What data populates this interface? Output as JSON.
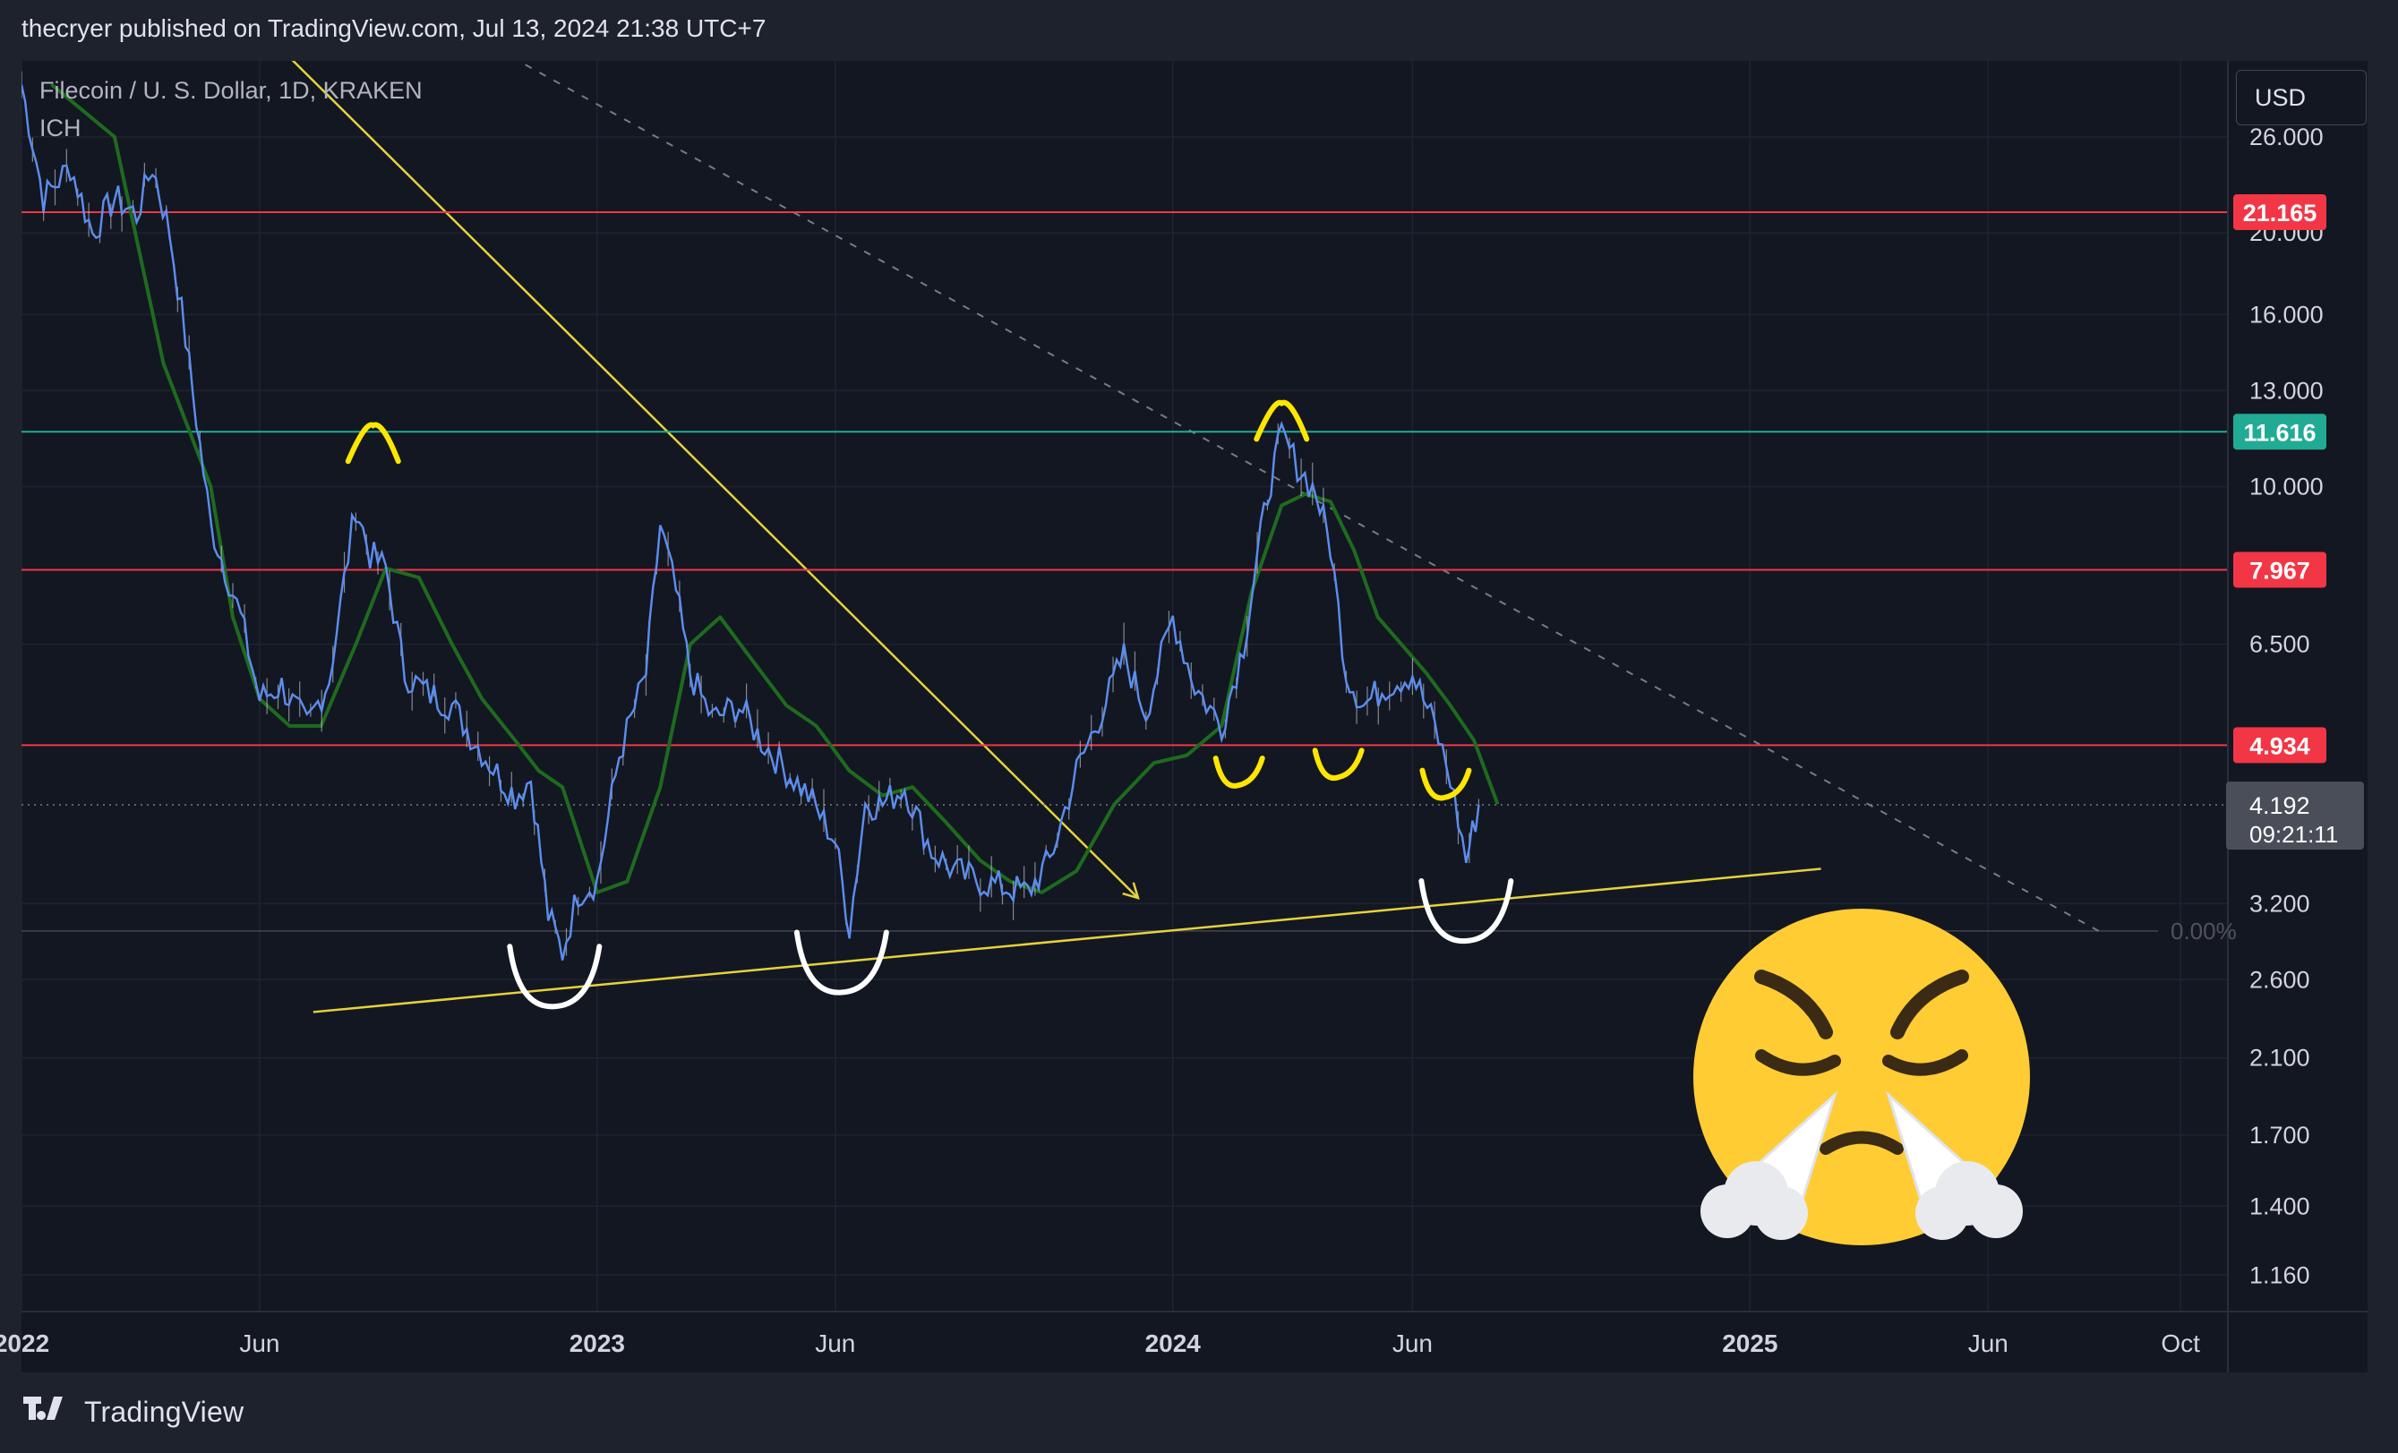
{
  "header": {
    "text": "thecryer published on TradingView.com, Jul 13, 2024 21:38 UTC+7"
  },
  "legend": {
    "symbol": "Filecoin / U. S. Dollar, 1D, KRAKEN",
    "indicator": "ICH"
  },
  "currency": "USD",
  "footer": {
    "brand": "TradingView"
  },
  "colors": {
    "background": "#131722",
    "price": "#5b8def",
    "cloud_line": "#1e6b1e",
    "conversion_line": "#c8a85a",
    "resistance": "#f23645",
    "pivot": "#22ab94",
    "trend": "#e6d23c",
    "annotation_yellow": "#ffe600",
    "annotation_white": "#ffffff"
  },
  "chart_data": {
    "type": "line",
    "symbol": "Filecoin / U. S. Dollar",
    "interval": "1D",
    "exchange": "KRAKEN",
    "scale": "log",
    "ylim": [
      1.05,
      32
    ],
    "y_ticks": [
      "26.000",
      "20.000",
      "16.000",
      "13.000",
      "10.000",
      "6.500",
      "3.200",
      "2.600",
      "2.100",
      "1.700",
      "1.400",
      "1.160"
    ],
    "x_ticks": [
      "2022",
      "Jun",
      "2023",
      "Jun",
      "2024",
      "Jun",
      "2025",
      "Jun",
      "Oct"
    ],
    "x_range": [
      "2022-01-01",
      "2025-10-31"
    ],
    "grid": true,
    "price_series": {
      "name": "",
      "x": [
        "2022-01-01",
        "2022-01-15",
        "2022-02-01",
        "2022-02-15",
        "2022-03-01",
        "2022-03-15",
        "2022-03-25",
        "2022-04-05",
        "2022-04-15",
        "2022-05-01",
        "2022-05-10",
        "2022-05-20",
        "2022-06-01",
        "2022-06-15",
        "2022-07-01",
        "2022-07-15",
        "2022-08-01",
        "2022-08-10",
        "2022-08-20",
        "2022-09-01",
        "2022-09-15",
        "2022-10-01",
        "2022-10-15",
        "2022-11-01",
        "2022-11-10",
        "2022-11-20",
        "2022-12-01",
        "2022-12-10",
        "2022-12-20",
        "2023-01-01",
        "2023-01-15",
        "2023-02-01",
        "2023-02-10",
        "2023-02-20",
        "2023-03-01",
        "2023-03-15",
        "2023-04-01",
        "2023-04-15",
        "2023-05-01",
        "2023-05-15",
        "2023-06-01",
        "2023-06-10",
        "2023-06-20",
        "2023-07-01",
        "2023-07-15",
        "2023-08-01",
        "2023-08-15",
        "2023-09-01",
        "2023-09-15",
        "2023-10-01",
        "2023-10-15",
        "2023-11-01",
        "2023-11-15",
        "2023-12-01",
        "2023-12-15",
        "2024-01-01",
        "2024-01-15",
        "2024-02-01",
        "2024-02-15",
        "2024-03-01",
        "2024-03-10",
        "2024-03-20",
        "2024-04-01",
        "2024-04-10",
        "2024-04-20",
        "2024-05-01",
        "2024-05-15",
        "2024-06-01",
        "2024-06-15",
        "2024-06-25",
        "2024-07-05",
        "2024-07-13"
      ],
      "y": [
        30,
        22,
        24,
        20,
        22,
        21,
        24,
        20,
        15,
        9,
        8,
        7,
        5.6,
        5.8,
        5.2,
        5.9,
        9.5,
        8.3,
        8,
        6,
        5.7,
        5.5,
        5,
        4.5,
        4.3,
        4.5,
        3.1,
        2.8,
        3.3,
        3.4,
        4.8,
        6,
        9,
        7.5,
        6,
        5.3,
        5.5,
        5,
        4.6,
        4.3,
        3.8,
        3.0,
        4.2,
        4.2,
        4.4,
        3.7,
        3.5,
        3.4,
        3.35,
        3.3,
        3.6,
        4.6,
        5.3,
        6.3,
        5.4,
        7,
        5.8,
        5.2,
        6.5,
        9.8,
        11.5,
        10.6,
        9.8,
        8.5,
        6,
        5.5,
        5.8,
        6,
        5.2,
        4.5,
        3.6,
        4.19
      ]
    },
    "ichimoku_line": {
      "name": "",
      "x": [
        "2022-01-20",
        "2022-03-01",
        "2022-04-01",
        "2022-05-01",
        "2022-05-15",
        "2022-06-01",
        "2022-06-20",
        "2022-07-10",
        "2022-08-01",
        "2022-08-20",
        "2022-09-10",
        "2022-10-01",
        "2022-10-20",
        "2022-11-10",
        "2022-11-25",
        "2022-12-10",
        "2023-01-01",
        "2023-01-20",
        "2023-02-10",
        "2023-03-01",
        "2023-03-20",
        "2023-04-10",
        "2023-05-01",
        "2023-05-20",
        "2023-06-10",
        "2023-07-01",
        "2023-07-20",
        "2023-08-10",
        "2023-09-01",
        "2023-09-20",
        "2023-10-10",
        "2023-11-01",
        "2023-11-25",
        "2023-12-20",
        "2024-01-10",
        "2024-02-01",
        "2024-02-20",
        "2024-03-10",
        "2024-03-25",
        "2024-04-10",
        "2024-04-25",
        "2024-05-10",
        "2024-05-25",
        "2024-06-10",
        "2024-06-25",
        "2024-07-10",
        "2024-07-25"
      ],
      "y": [
        30,
        26,
        14,
        10,
        7,
        5.6,
        5.2,
        5.2,
        6.5,
        8,
        7.8,
        6.5,
        5.6,
        5,
        4.6,
        4.4,
        3.3,
        3.4,
        4.4,
        6.5,
        7,
        6.2,
        5.5,
        5.2,
        4.6,
        4.3,
        4.4,
        4.0,
        3.6,
        3.4,
        3.3,
        3.5,
        4.2,
        4.7,
        4.8,
        5.2,
        7.5,
        9.5,
        9.8,
        9.6,
        8.4,
        7,
        6.5,
        6,
        5.5,
        5,
        4.2
      ]
    },
    "horizontal_levels": [
      {
        "value": 21.165,
        "label": "21.165",
        "color": "#f23645"
      },
      {
        "value": 11.616,
        "label": "11.616",
        "color": "#22ab94"
      },
      {
        "value": 7.967,
        "label": "7.967",
        "color": "#f23645"
      },
      {
        "value": 4.934,
        "label": "4.934",
        "color": "#f23645"
      }
    ],
    "last_price": {
      "value": 4.192,
      "label": "4.192",
      "countdown": "09:21:11"
    },
    "lower_level": {
      "value": 2.97,
      "label": "0.00%"
    },
    "trendlines": [
      {
        "from": [
          "2022-05-01",
          40
        ],
        "to": [
          "2023-12-10",
          3.25
        ],
        "color": "#e6d23c",
        "arrow": true
      },
      {
        "from": [
          "2022-07-05",
          2.38
        ],
        "to": [
          "2025-02-15",
          3.52
        ],
        "color": "#e6d23c",
        "arrow": false
      },
      {
        "from": [
          "2022-08-10",
          40
        ],
        "to": [
          "2025-08-10",
          2.97
        ],
        "color": "#787b86",
        "dashed": true
      }
    ],
    "annotations": [
      {
        "shape": "cap",
        "at": [
          "2022-08-12",
          11.2
        ],
        "color": "#ffe600"
      },
      {
        "shape": "cap",
        "at": [
          "2024-03-10",
          11.9
        ],
        "color": "#ffe600"
      },
      {
        "shape": "cup",
        "at": [
          "2022-12-05",
          2.55
        ],
        "color": "#ffffff"
      },
      {
        "shape": "cup",
        "at": [
          "2023-06-05",
          2.65
        ],
        "color": "#ffffff"
      },
      {
        "shape": "cup",
        "at": [
          "2024-07-05",
          3.05
        ],
        "color": "#ffffff"
      },
      {
        "shape": "small-cup",
        "at": [
          "2024-02-12",
          4.6
        ],
        "color": "#ffe600"
      },
      {
        "shape": "small-cup",
        "at": [
          "2024-04-15",
          4.7
        ],
        "color": "#ffe600"
      },
      {
        "shape": "small-cup",
        "at": [
          "2024-06-22",
          4.45
        ],
        "color": "#ffe600"
      }
    ],
    "emoji": "face-with-steam-from-nose"
  }
}
